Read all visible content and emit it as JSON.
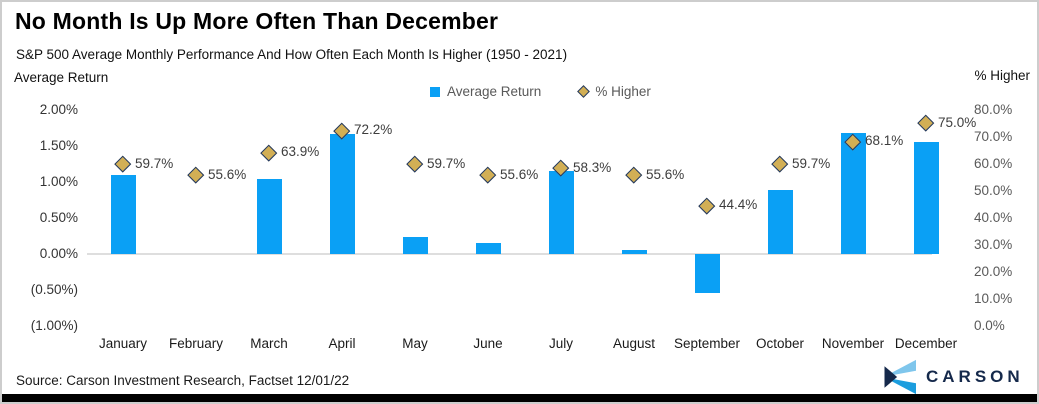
{
  "header": {
    "title": "No Month Is Up More Often Than December",
    "subtitle": "S&P 500 Average Monthly Performance And How Often Each Month Is Higher (1950 - 2021)"
  },
  "chart_data": {
    "type": "combo",
    "categories": [
      "January",
      "February",
      "March",
      "April",
      "May",
      "June",
      "July",
      "August",
      "September",
      "October",
      "November",
      "December"
    ],
    "series": [
      {
        "name": "Average Return",
        "type": "bar",
        "axis": "left",
        "color": "#0AA0F5",
        "values": [
          1.1,
          0.0,
          1.04,
          1.67,
          0.24,
          0.15,
          1.15,
          0.06,
          -0.54,
          0.89,
          1.68,
          1.56
        ]
      },
      {
        "name": "% Higher",
        "type": "scatter",
        "marker": "diamond",
        "axis": "right",
        "color": "#D2AF55",
        "marker_border_color": "#1F3864",
        "values": [
          59.7,
          55.6,
          63.9,
          72.2,
          59.7,
          55.6,
          58.3,
          55.6,
          44.4,
          59.7,
          68.1,
          75.0
        ],
        "labels": [
          "59.7%",
          "55.6%",
          "63.9%",
          "72.2%",
          "59.7%",
          "55.6%",
          "58.3%",
          "55.6%",
          "44.4%",
          "59.7%",
          "68.1%",
          "75.0%"
        ]
      }
    ],
    "left_axis": {
      "title": "Average Return",
      "range": [
        -1.0,
        2.0
      ],
      "ticks": [
        {
          "label": "2.00%",
          "value": 2.0
        },
        {
          "label": "1.50%",
          "value": 1.5
        },
        {
          "label": "1.00%",
          "value": 1.0
        },
        {
          "label": "0.50%",
          "value": 0.5
        },
        {
          "label": "0.00%",
          "value": 0.0
        },
        {
          "label": "(0.50%)",
          "value": -0.5
        },
        {
          "label": "(1.00%)",
          "value": -1.0
        }
      ]
    },
    "right_axis": {
      "title": "% Higher",
      "range": [
        0.0,
        80.0
      ],
      "ticks": [
        {
          "label": "80.0%",
          "value": 80
        },
        {
          "label": "70.0%",
          "value": 70
        },
        {
          "label": "60.0%",
          "value": 60
        },
        {
          "label": "50.0%",
          "value": 50
        },
        {
          "label": "40.0%",
          "value": 40
        },
        {
          "label": "30.0%",
          "value": 30
        },
        {
          "label": "20.0%",
          "value": 20
        },
        {
          "label": "10.0%",
          "value": 10
        },
        {
          "label": "0.0%",
          "value": 0
        }
      ]
    },
    "grid": "zero-line-only",
    "legend_position": "top-center",
    "zero_line_color": "#DEDEDE"
  },
  "footer": {
    "source": "Source: Carson Investment Research, Factset 12/01/22",
    "logo_text": "CARSON"
  },
  "colors": {
    "bar_blue": "#0AA0F5",
    "diamond_gold": "#D2AF55",
    "diamond_border_navy": "#1F3864",
    "logo_navy": "#15294B",
    "logo_light_blue": "#7FC6EC",
    "logo_mid_blue": "#1B9DDE",
    "bottom_band": "#000000"
  }
}
